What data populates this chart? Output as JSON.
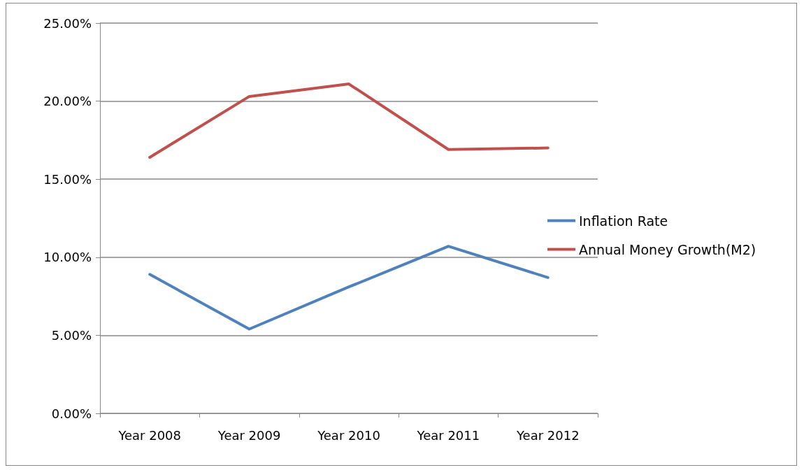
{
  "chart_data": {
    "type": "line",
    "categories": [
      "Year 2008",
      "Year 2009",
      "Year 2010",
      "Year 2011",
      "Year 2012"
    ],
    "series": [
      {
        "name": "Inflation Rate",
        "color": "#4f81bd",
        "values": [
          8.9,
          5.4,
          8.1,
          10.7,
          8.7
        ]
      },
      {
        "name": "Annual Money Growth(M2)",
        "color": "#c0504d",
        "values": [
          16.4,
          20.3,
          21.1,
          16.9,
          17.0
        ]
      }
    ],
    "ylim": [
      0,
      25
    ],
    "yticks": [
      {
        "value": 0,
        "label": "0.00%"
      },
      {
        "value": 5,
        "label": "5.00%"
      },
      {
        "value": 10,
        "label": "10.00%"
      },
      {
        "value": 15,
        "label": "15.00%"
      },
      {
        "value": 20,
        "label": "20.00%"
      },
      {
        "value": 25,
        "label": "25.00%"
      }
    ],
    "grid": "y",
    "legend": "right",
    "marker": "none"
  }
}
